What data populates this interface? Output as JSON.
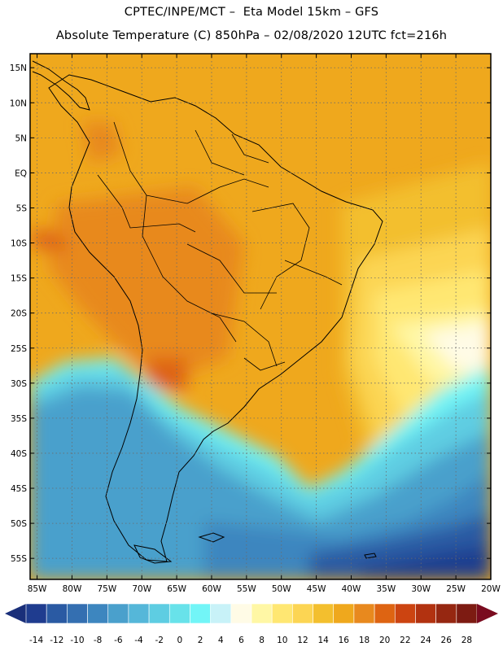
{
  "header": {
    "line1": "CPTEC/INPE/MCT –  Eta Model 15km – GFS",
    "line2": "Absolute Temperature (C) 850hPa – 02/08/2020 12UTC fct=216h"
  },
  "map": {
    "lat_labels": [
      "15N",
      "10N",
      "5N",
      "EQ",
      "5S",
      "10S",
      "15S",
      "20S",
      "25S",
      "30S",
      "35S",
      "40S",
      "45S",
      "50S",
      "55S"
    ],
    "lon_labels": [
      "85W",
      "80W",
      "75W",
      "70W",
      "65W",
      "60W",
      "55W",
      "50W",
      "45W",
      "40W",
      "35W",
      "30W",
      "25W",
      "20W"
    ],
    "lat_values": [
      15,
      10,
      5,
      0,
      -5,
      -10,
      -15,
      -20,
      -25,
      -30,
      -35,
      -40,
      -45,
      -50,
      -55
    ],
    "lon_values": [
      -85,
      -80,
      -75,
      -70,
      -65,
      -60,
      -55,
      -50,
      -45,
      -40,
      -35,
      -30,
      -25,
      -20
    ],
    "lon_range": [
      -86,
      -20
    ],
    "lat_range": [
      -58,
      17
    ]
  },
  "colorbar": {
    "labels": [
      "-14",
      "-12",
      "-10",
      "-8",
      "-6",
      "-4",
      "-2",
      "0",
      "2",
      "4",
      "6",
      "8",
      "10",
      "12",
      "14",
      "16",
      "18",
      "20",
      "22",
      "24",
      "26",
      "28"
    ],
    "values": [
      -14,
      -12,
      -10,
      -8,
      -6,
      -4,
      -2,
      0,
      2,
      4,
      6,
      8,
      10,
      12,
      14,
      16,
      18,
      20,
      22,
      24,
      26,
      28
    ],
    "colors": [
      "#1f3c8f",
      "#2a5aa3",
      "#346fb1",
      "#3d86bf",
      "#4aa0cc",
      "#55b7d9",
      "#5ecde2",
      "#68e2ea",
      "#72f5f7",
      "#c8f2f8",
      "#fffbe6",
      "#fff7a5",
      "#ffe772",
      "#fcd553",
      "#f3bf2e",
      "#efa81d",
      "#e8891e",
      "#de6412",
      "#cc4411",
      "#b23210",
      "#962711",
      "#7d1b12"
    ],
    "low_color": "#1a2f7a",
    "high_color": "#7a0b1f"
  }
}
